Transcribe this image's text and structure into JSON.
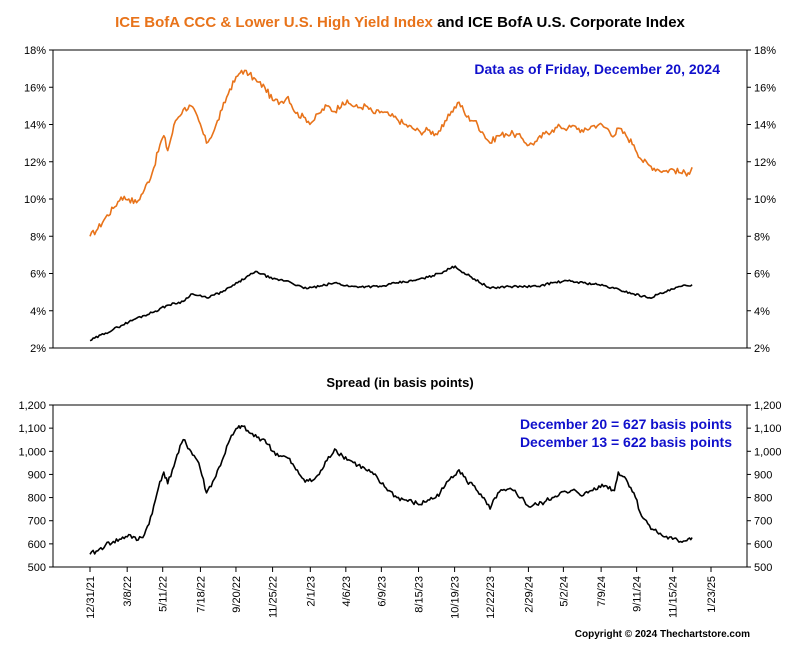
{
  "chart_data": [
    {
      "type": "line",
      "title_part1": "ICE BofA CCC & Lower U.S. High Yield Index",
      "title_part2": "and ICE BofA U.S. Corporate Index",
      "annotation": "Data as of Friday, December 20, 2024",
      "ylim": [
        2,
        18
      ],
      "yticks": [
        "2%",
        "4%",
        "6%",
        "8%",
        "10%",
        "12%",
        "14%",
        "16%",
        "18%"
      ],
      "colors": {
        "ccc": "#e8731a",
        "corporate": "#000000",
        "annotation": "#1010cc"
      },
      "series": [
        {
          "key": "ccc",
          "x": [
            "2021-12-31",
            "2022-01-14",
            "2022-01-28",
            "2022-02-11",
            "2022-02-25",
            "2022-03-11",
            "2022-03-25",
            "2022-04-08",
            "2022-04-22",
            "2022-05-06",
            "2022-05-13",
            "2022-05-20",
            "2022-06-03",
            "2022-06-17",
            "2022-07-01",
            "2022-07-15",
            "2022-07-29",
            "2022-08-12",
            "2022-08-26",
            "2022-09-09",
            "2022-09-23",
            "2022-09-30",
            "2022-10-14",
            "2022-10-28",
            "2022-11-11",
            "2022-11-25",
            "2022-12-09",
            "2022-12-23",
            "2023-01-06",
            "2023-01-20",
            "2023-02-03",
            "2023-02-17",
            "2023-03-03",
            "2023-03-17",
            "2023-03-31",
            "2023-04-14",
            "2023-04-28",
            "2023-05-12",
            "2023-05-26",
            "2023-06-09",
            "2023-06-23",
            "2023-07-07",
            "2023-07-21",
            "2023-08-04",
            "2023-08-18",
            "2023-09-01",
            "2023-09-15",
            "2023-09-29",
            "2023-10-13",
            "2023-10-27",
            "2023-11-10",
            "2023-11-24",
            "2023-12-08",
            "2023-12-22",
            "2024-01-05",
            "2024-01-19",
            "2024-02-02",
            "2024-02-16",
            "2024-03-01",
            "2024-03-15",
            "2024-03-29",
            "2024-04-12",
            "2024-04-26",
            "2024-05-10",
            "2024-05-24",
            "2024-06-07",
            "2024-06-21",
            "2024-07-05",
            "2024-07-19",
            "2024-08-02",
            "2024-08-09",
            "2024-08-23",
            "2024-09-06",
            "2024-09-20",
            "2024-10-04",
            "2024-10-18",
            "2024-11-01",
            "2024-11-15",
            "2024-11-29",
            "2024-12-13",
            "2024-12-20"
          ],
          "values": [
            8.0,
            8.4,
            9.0,
            9.5,
            10.1,
            10.0,
            9.8,
            10.5,
            11.4,
            12.9,
            13.4,
            12.6,
            14.2,
            14.8,
            15.0,
            14.2,
            13.0,
            13.7,
            14.8,
            15.9,
            16.6,
            16.9,
            16.7,
            16.3,
            16.0,
            15.3,
            15.2,
            15.5,
            14.6,
            14.4,
            14.1,
            14.6,
            15.0,
            14.7,
            15.2,
            15.1,
            14.9,
            15.0,
            14.6,
            14.7,
            14.5,
            14.3,
            14.0,
            13.8,
            13.6,
            13.7,
            13.5,
            13.9,
            14.7,
            15.2,
            14.4,
            14.2,
            13.6,
            13.0,
            13.4,
            13.5,
            13.5,
            13.3,
            12.9,
            13.1,
            13.5,
            13.7,
            13.9,
            13.8,
            13.9,
            13.6,
            13.9,
            14.0,
            13.8,
            13.4,
            13.8,
            13.4,
            12.9,
            12.1,
            11.8,
            11.6,
            11.5,
            11.6,
            11.4,
            11.4,
            11.7
          ]
        },
        {
          "key": "corporate",
          "x": [
            "2021-12-31",
            "2022-01-28",
            "2022-02-25",
            "2022-03-25",
            "2022-04-22",
            "2022-05-20",
            "2022-06-17",
            "2022-07-01",
            "2022-07-29",
            "2022-08-26",
            "2022-09-23",
            "2022-10-14",
            "2022-10-28",
            "2022-11-25",
            "2022-12-23",
            "2023-01-20",
            "2023-02-17",
            "2023-03-17",
            "2023-04-14",
            "2023-05-12",
            "2023-06-09",
            "2023-07-07",
            "2023-08-04",
            "2023-09-01",
            "2023-09-29",
            "2023-10-20",
            "2023-10-27",
            "2023-11-24",
            "2023-12-22",
            "2024-01-19",
            "2024-02-16",
            "2024-03-15",
            "2024-04-12",
            "2024-05-10",
            "2024-06-07",
            "2024-07-05",
            "2024-08-02",
            "2024-09-06",
            "2024-10-04",
            "2024-11-01",
            "2024-11-29",
            "2024-12-20"
          ],
          "values": [
            2.4,
            2.8,
            3.2,
            3.6,
            3.9,
            4.3,
            4.5,
            4.9,
            4.7,
            5.0,
            5.5,
            5.9,
            6.1,
            5.7,
            5.6,
            5.2,
            5.3,
            5.5,
            5.3,
            5.3,
            5.3,
            5.5,
            5.6,
            5.8,
            6.1,
            6.4,
            6.2,
            5.7,
            5.2,
            5.3,
            5.3,
            5.3,
            5.5,
            5.6,
            5.5,
            5.4,
            5.2,
            4.9,
            4.7,
            5.0,
            5.3,
            5.4
          ]
        }
      ]
    },
    {
      "type": "line",
      "title": "Spread (in basis points)",
      "annotation_lines": [
        "December 20 = 627 basis points",
        "December 13 = 622 basis points"
      ],
      "ylim": [
        500,
        1200
      ],
      "yticks": [
        "500",
        "600",
        "700",
        "800",
        "900",
        "1,000",
        "1,100",
        "1,200"
      ],
      "xtick_labels": [
        "12/31/21",
        "3/8/22",
        "5/11/22",
        "7/18/22",
        "9/20/22",
        "11/25/22",
        "2/1/23",
        "4/6/23",
        "6/9/23",
        "8/15/23",
        "10/19/23",
        "12/22/23",
        "2/29/24",
        "5/2/24",
        "7/9/24",
        "9/11/24",
        "11/15/24",
        "1/23/25"
      ],
      "xtick_dates": [
        "2021-12-31",
        "2022-03-08",
        "2022-05-11",
        "2022-07-18",
        "2022-09-20",
        "2022-11-25",
        "2023-02-01",
        "2023-04-06",
        "2023-06-09",
        "2023-08-15",
        "2023-10-19",
        "2023-12-22",
        "2024-02-29",
        "2024-05-02",
        "2024-07-09",
        "2024-09-11",
        "2024-11-15",
        "2025-01-23"
      ],
      "series": [
        {
          "key": "spread",
          "x": [
            "2021-12-31",
            "2022-01-14",
            "2022-01-28",
            "2022-02-11",
            "2022-02-25",
            "2022-03-11",
            "2022-03-25",
            "2022-04-08",
            "2022-04-22",
            "2022-05-06",
            "2022-05-13",
            "2022-05-20",
            "2022-06-03",
            "2022-06-17",
            "2022-07-01",
            "2022-07-15",
            "2022-07-29",
            "2022-08-12",
            "2022-08-26",
            "2022-09-09",
            "2022-09-23",
            "2022-09-30",
            "2022-10-14",
            "2022-10-28",
            "2022-11-11",
            "2022-11-25",
            "2022-12-09",
            "2022-12-23",
            "2023-01-06",
            "2023-01-20",
            "2023-02-03",
            "2023-02-17",
            "2023-03-03",
            "2023-03-17",
            "2023-03-31",
            "2023-04-14",
            "2023-04-28",
            "2023-05-12",
            "2023-05-26",
            "2023-06-09",
            "2023-06-23",
            "2023-07-07",
            "2023-07-21",
            "2023-08-04",
            "2023-08-18",
            "2023-09-01",
            "2023-09-15",
            "2023-09-29",
            "2023-10-13",
            "2023-10-27",
            "2023-11-10",
            "2023-11-24",
            "2023-12-08",
            "2023-12-22",
            "2024-01-05",
            "2024-01-19",
            "2024-02-02",
            "2024-02-16",
            "2024-03-01",
            "2024-03-15",
            "2024-03-29",
            "2024-04-12",
            "2024-04-26",
            "2024-05-10",
            "2024-05-24",
            "2024-06-07",
            "2024-06-21",
            "2024-07-05",
            "2024-07-19",
            "2024-08-02",
            "2024-08-09",
            "2024-08-23",
            "2024-09-06",
            "2024-09-20",
            "2024-10-04",
            "2024-10-18",
            "2024-11-01",
            "2024-11-15",
            "2024-11-29",
            "2024-12-13",
            "2024-12-20"
          ],
          "values": [
            555,
            570,
            595,
            610,
            620,
            640,
            615,
            640,
            730,
            870,
            910,
            860,
            960,
            1050,
            1000,
            950,
            820,
            880,
            960,
            1050,
            1100,
            1110,
            1080,
            1060,
            1050,
            1000,
            980,
            970,
            920,
            880,
            870,
            900,
            960,
            1010,
            980,
            960,
            940,
            920,
            900,
            860,
            830,
            800,
            790,
            780,
            770,
            790,
            800,
            840,
            890,
            920,
            870,
            850,
            800,
            750,
            820,
            830,
            830,
            800,
            760,
            770,
            780,
            800,
            820,
            820,
            830,
            810,
            830,
            850,
            850,
            830,
            910,
            880,
            820,
            720,
            680,
            650,
            630,
            620,
            610,
            622,
            627
          ]
        }
      ]
    }
  ],
  "copyright": "Copyright © 2024 Thechartstore.com"
}
